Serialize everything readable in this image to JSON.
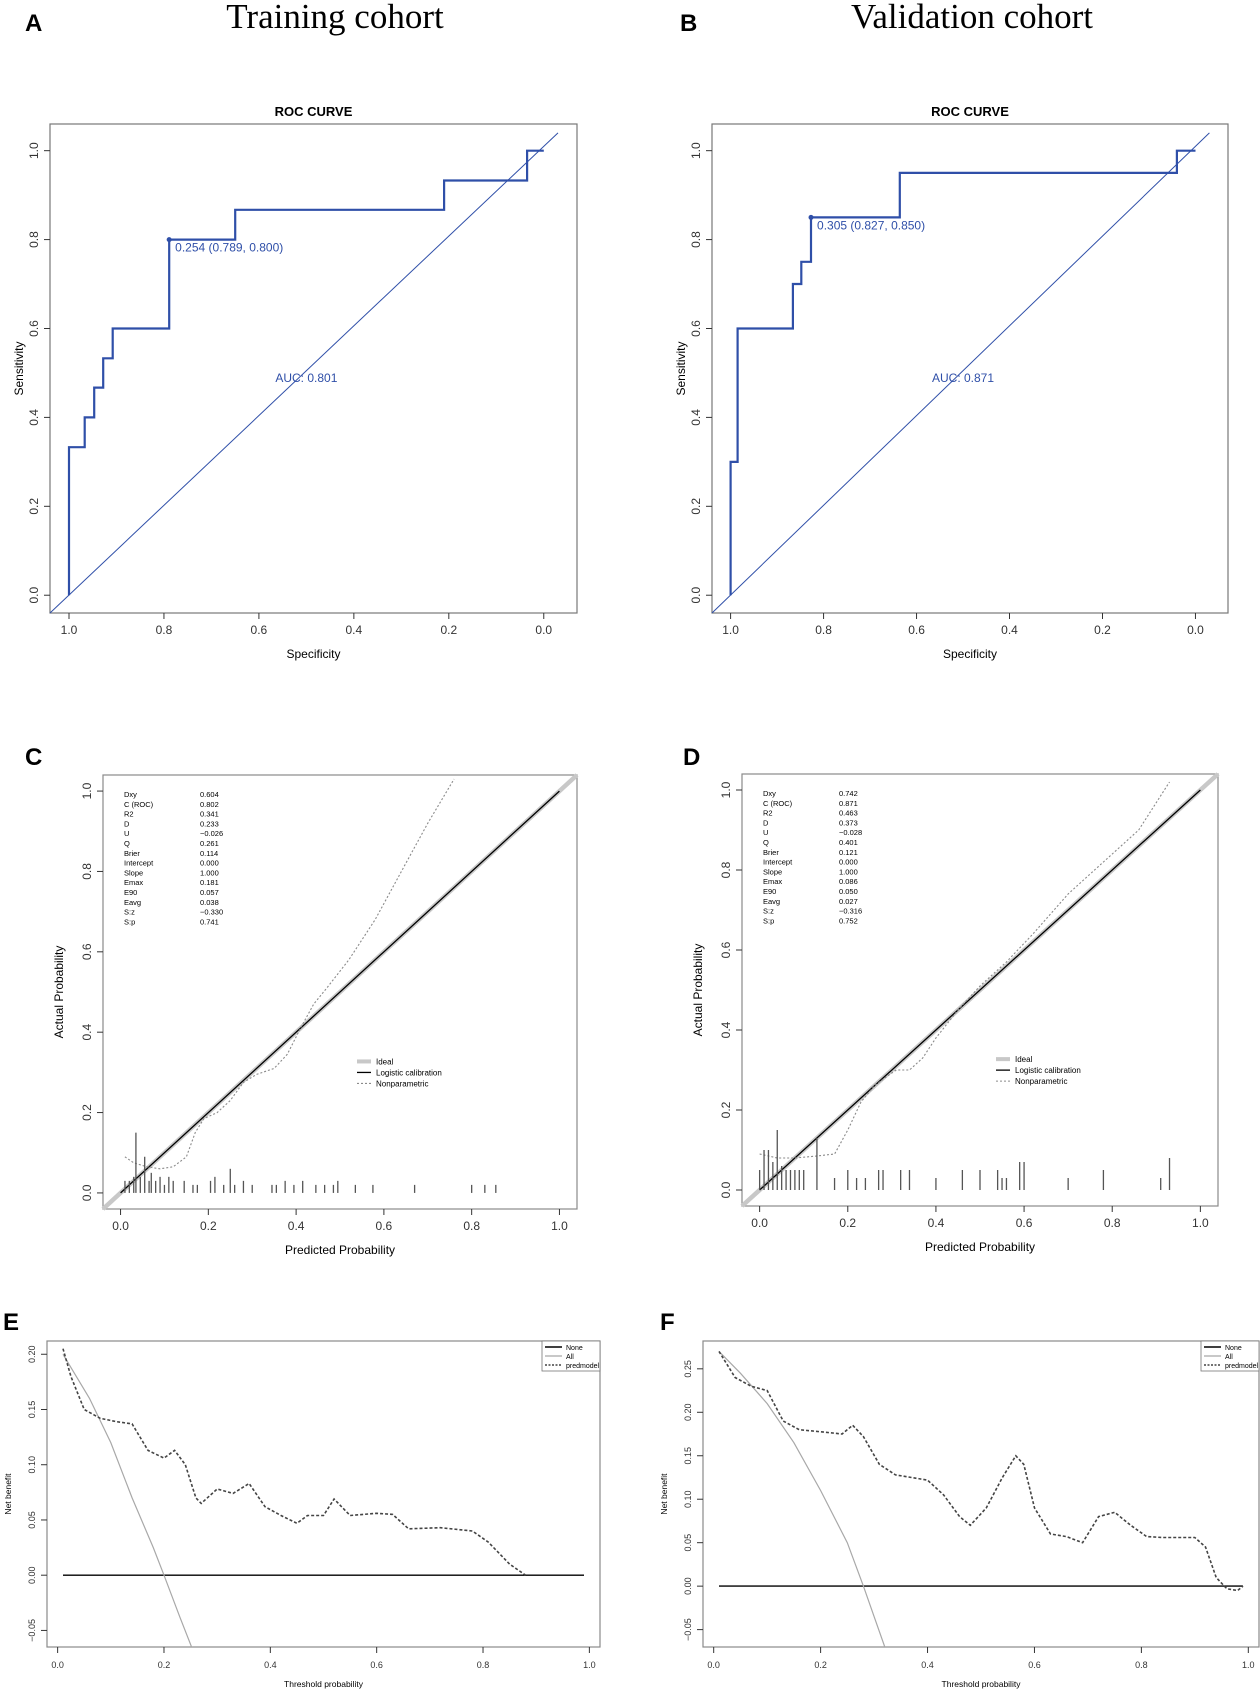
{
  "column_titles": [
    "Training cohort",
    "Validation cohort"
  ],
  "colors": {
    "roc": "#2F4FA8",
    "ink": "#000000",
    "ideal": "#c8c8c8",
    "all": "#a8a8a8",
    "nonpar": "#8a8a8a",
    "axis": "#333333",
    "box": "#777777",
    "rug": "#555555"
  },
  "chart_data": [
    {
      "id": "roc_train",
      "panel": "A",
      "type": "line",
      "title": "ROC CURVE",
      "xlabel": "Specificity",
      "ylabel": "Sensitivity",
      "xlim": [
        1.04,
        -0.07
      ],
      "ylim": [
        -0.04,
        1.06
      ],
      "xticks": [
        1.0,
        0.8,
        0.6,
        0.4,
        0.2,
        0.0
      ],
      "yticks": [
        0.0,
        0.2,
        0.4,
        0.6,
        0.8,
        1.0
      ],
      "curve": [
        [
          1.0,
          0.0
        ],
        [
          1.0,
          0.333
        ],
        [
          0.967,
          0.333
        ],
        [
          0.967,
          0.4
        ],
        [
          0.947,
          0.4
        ],
        [
          0.947,
          0.467
        ],
        [
          0.928,
          0.467
        ],
        [
          0.928,
          0.533
        ],
        [
          0.908,
          0.533
        ],
        [
          0.908,
          0.6
        ],
        [
          0.789,
          0.6
        ],
        [
          0.789,
          0.8
        ],
        [
          0.65,
          0.8
        ],
        [
          0.65,
          0.867
        ],
        [
          0.21,
          0.867
        ],
        [
          0.21,
          0.933
        ],
        [
          0.035,
          0.933
        ],
        [
          0.035,
          1.0
        ],
        [
          0.0,
          1.0
        ]
      ],
      "diagonal": [
        [
          1.04,
          -0.04
        ],
        [
          -0.03,
          1.04
        ]
      ],
      "best_point": [
        0.789,
        0.8
      ],
      "best_label": "0.254 (0.789, 0.800)",
      "auc_label": "AUC: 0.801",
      "auc_pos": [
        0.5,
        0.48
      ]
    },
    {
      "id": "roc_valid",
      "panel": "B",
      "type": "line",
      "title": "ROC CURVE",
      "xlabel": "Specificity",
      "ylabel": "Sensitivity",
      "xlim": [
        1.04,
        -0.07
      ],
      "ylim": [
        -0.04,
        1.06
      ],
      "xticks": [
        1.0,
        0.8,
        0.6,
        0.4,
        0.2,
        0.0
      ],
      "yticks": [
        0.0,
        0.2,
        0.4,
        0.6,
        0.8,
        1.0
      ],
      "curve": [
        [
          1.0,
          0.0
        ],
        [
          1.0,
          0.3
        ],
        [
          0.985,
          0.3
        ],
        [
          0.985,
          0.6
        ],
        [
          0.866,
          0.6
        ],
        [
          0.866,
          0.7
        ],
        [
          0.848,
          0.7
        ],
        [
          0.848,
          0.75
        ],
        [
          0.827,
          0.75
        ],
        [
          0.827,
          0.85
        ],
        [
          0.636,
          0.85
        ],
        [
          0.636,
          0.95
        ],
        [
          0.04,
          0.95
        ],
        [
          0.04,
          1.0
        ],
        [
          0.0,
          1.0
        ]
      ],
      "diagonal": [
        [
          1.04,
          -0.04
        ],
        [
          -0.03,
          1.04
        ]
      ],
      "best_point": [
        0.827,
        0.85
      ],
      "best_label": "0.305 (0.827, 0.850)",
      "auc_label": "AUC: 0.871",
      "auc_pos": [
        0.5,
        0.48
      ]
    },
    {
      "id": "cal_train",
      "panel": "C",
      "type": "line",
      "xlabel": "Predicted Probability",
      "ylabel": "Actual Probability",
      "xlim": [
        -0.04,
        1.04
      ],
      "ylim": [
        -0.04,
        1.04
      ],
      "xticks": [
        0.0,
        0.2,
        0.4,
        0.6,
        0.8,
        1.0
      ],
      "yticks": [
        0.0,
        0.2,
        0.4,
        0.6,
        0.8,
        1.0
      ],
      "stats_names": [
        "Dxy",
        "C (ROC)",
        "R2",
        "D",
        "U",
        "Q",
        "Brier",
        "Intercept",
        "Slope",
        "Emax",
        "E90",
        "Eavg",
        "S:z",
        "S:p"
      ],
      "stats_values": [
        "0.604",
        "0.802",
        "0.341",
        "0.233",
        "−0.026",
        "0.261",
        "0.114",
        "0.000",
        "1.000",
        "0.181",
        "0.057",
        "0.038",
        "−0.330",
        "0.741"
      ],
      "legend": [
        "Ideal",
        "Logistic calibration",
        "Nonparametric"
      ],
      "ideal": [
        [
          -0.04,
          -0.04
        ],
        [
          1.04,
          1.04
        ]
      ],
      "logistic": [
        [
          0.0,
          0.0
        ],
        [
          1.0,
          1.0
        ]
      ],
      "nonparametric": [
        [
          0.01,
          0.09
        ],
        [
          0.03,
          0.075
        ],
        [
          0.06,
          0.065
        ],
        [
          0.09,
          0.06
        ],
        [
          0.12,
          0.065
        ],
        [
          0.15,
          0.09
        ],
        [
          0.17,
          0.15
        ],
        [
          0.19,
          0.185
        ],
        [
          0.22,
          0.2
        ],
        [
          0.25,
          0.23
        ],
        [
          0.28,
          0.275
        ],
        [
          0.31,
          0.295
        ],
        [
          0.35,
          0.31
        ],
        [
          0.38,
          0.345
        ],
        [
          0.41,
          0.41
        ],
        [
          0.44,
          0.47
        ],
        [
          0.47,
          0.51
        ],
        [
          0.52,
          0.58
        ],
        [
          0.58,
          0.68
        ],
        [
          0.64,
          0.8
        ],
        [
          0.7,
          0.92
        ],
        [
          0.76,
          1.03
        ]
      ],
      "rug_ticks": [
        [
          0.01,
          0.03
        ],
        [
          0.02,
          0.03
        ],
        [
          0.03,
          0.04
        ],
        [
          0.035,
          0.15
        ],
        [
          0.045,
          0.04
        ],
        [
          0.055,
          0.09
        ],
        [
          0.065,
          0.03
        ],
        [
          0.07,
          0.05
        ],
        [
          0.08,
          0.03
        ],
        [
          0.09,
          0.04
        ],
        [
          0.1,
          0.02
        ],
        [
          0.11,
          0.04
        ],
        [
          0.12,
          0.03
        ],
        [
          0.145,
          0.03
        ],
        [
          0.165,
          0.02
        ],
        [
          0.175,
          0.02
        ],
        [
          0.205,
          0.03
        ],
        [
          0.215,
          0.04
        ],
        [
          0.235,
          0.02
        ],
        [
          0.25,
          0.06
        ],
        [
          0.26,
          0.02
        ],
        [
          0.28,
          0.03
        ],
        [
          0.3,
          0.02
        ],
        [
          0.345,
          0.02
        ],
        [
          0.355,
          0.02
        ],
        [
          0.375,
          0.03
        ],
        [
          0.395,
          0.02
        ],
        [
          0.415,
          0.03
        ],
        [
          0.445,
          0.02
        ],
        [
          0.465,
          0.02
        ],
        [
          0.485,
          0.02
        ],
        [
          0.495,
          0.03
        ],
        [
          0.535,
          0.02
        ],
        [
          0.575,
          0.02
        ],
        [
          0.67,
          0.02
        ],
        [
          0.8,
          0.02
        ],
        [
          0.83,
          0.02
        ],
        [
          0.855,
          0.02
        ]
      ]
    },
    {
      "id": "cal_valid",
      "panel": "D",
      "type": "line",
      "xlabel": "Predicted Probability",
      "ylabel": "Actual Probability",
      "xlim": [
        -0.04,
        1.04
      ],
      "ylim": [
        -0.04,
        1.04
      ],
      "xticks": [
        0.0,
        0.2,
        0.4,
        0.6,
        0.8,
        1.0
      ],
      "yticks": [
        0.0,
        0.2,
        0.4,
        0.6,
        0.8,
        1.0
      ],
      "stats_names": [
        "Dxy",
        "C (ROC)",
        "R2",
        "D",
        "U",
        "Q",
        "Brier",
        "Intercept",
        "Slope",
        "Emax",
        "E90",
        "Eavg",
        "S:z",
        "S:p"
      ],
      "stats_values": [
        "0.742",
        "0.871",
        "0.463",
        "0.373",
        "−0.028",
        "0.401",
        "0.121",
        "0.000",
        "1.000",
        "0.086",
        "0.050",
        "0.027",
        "−0.316",
        "0.752"
      ],
      "legend": [
        "Ideal",
        "Logistic calibration",
        "Nonparametric"
      ],
      "ideal": [
        [
          -0.04,
          -0.04
        ],
        [
          1.04,
          1.04
        ]
      ],
      "logistic": [
        [
          0.0,
          0.0
        ],
        [
          1.0,
          1.0
        ]
      ],
      "nonparametric": [
        [
          0.0,
          0.09
        ],
        [
          0.04,
          0.08
        ],
        [
          0.08,
          0.08
        ],
        [
          0.13,
          0.085
        ],
        [
          0.17,
          0.09
        ],
        [
          0.2,
          0.15
        ],
        [
          0.23,
          0.22
        ],
        [
          0.26,
          0.26
        ],
        [
          0.29,
          0.285
        ],
        [
          0.31,
          0.3
        ],
        [
          0.34,
          0.3
        ],
        [
          0.37,
          0.33
        ],
        [
          0.4,
          0.38
        ],
        [
          0.45,
          0.45
        ],
        [
          0.5,
          0.51
        ],
        [
          0.56,
          0.57
        ],
        [
          0.62,
          0.64
        ],
        [
          0.7,
          0.74
        ],
        [
          0.78,
          0.82
        ],
        [
          0.86,
          0.9
        ],
        [
          0.93,
          1.02
        ]
      ],
      "rug_ticks": [
        [
          0.0,
          0.05
        ],
        [
          0.01,
          0.1
        ],
        [
          0.02,
          0.1
        ],
        [
          0.03,
          0.07
        ],
        [
          0.04,
          0.15
        ],
        [
          0.05,
          0.06
        ],
        [
          0.06,
          0.05
        ],
        [
          0.07,
          0.05
        ],
        [
          0.08,
          0.05
        ],
        [
          0.09,
          0.05
        ],
        [
          0.1,
          0.05
        ],
        [
          0.13,
          0.13
        ],
        [
          0.17,
          0.03
        ],
        [
          0.2,
          0.05
        ],
        [
          0.22,
          0.03
        ],
        [
          0.24,
          0.03
        ],
        [
          0.27,
          0.05
        ],
        [
          0.28,
          0.05
        ],
        [
          0.32,
          0.05
        ],
        [
          0.34,
          0.05
        ],
        [
          0.4,
          0.03
        ],
        [
          0.46,
          0.05
        ],
        [
          0.5,
          0.05
        ],
        [
          0.54,
          0.05
        ],
        [
          0.55,
          0.03
        ],
        [
          0.56,
          0.03
        ],
        [
          0.59,
          0.07
        ],
        [
          0.6,
          0.07
        ],
        [
          0.7,
          0.03
        ],
        [
          0.78,
          0.05
        ],
        [
          0.91,
          0.03
        ],
        [
          0.93,
          0.08
        ]
      ]
    },
    {
      "id": "dca_train",
      "panel": "E",
      "type": "line",
      "xlabel": "Threshold probability",
      "ylabel": "Net benefit",
      "xlim": [
        -0.02,
        1.02
      ],
      "ylim": [
        -0.065,
        0.212
      ],
      "xticks": [
        0.0,
        0.2,
        0.4,
        0.6,
        0.8,
        1.0
      ],
      "xtick_labels": [
        "0.0",
        "0.2",
        "0.4",
        "0.6",
        "0.8",
        "1.0"
      ],
      "yticks": [
        -0.05,
        0.0,
        0.05,
        0.1,
        0.15,
        0.2
      ],
      "ytick_labels": [
        "−0.05",
        "0.00",
        "0.05",
        "0.10",
        "0.15",
        "0.20"
      ],
      "legend": [
        "None",
        "All",
        "predmodel"
      ],
      "none": [
        [
          0.01,
          0.0
        ],
        [
          0.99,
          0.0
        ]
      ],
      "all": [
        [
          0.01,
          0.2
        ],
        [
          0.06,
          0.16
        ],
        [
          0.1,
          0.12
        ],
        [
          0.14,
          0.07
        ],
        [
          0.18,
          0.025
        ],
        [
          0.2,
          0.0
        ],
        [
          0.23,
          -0.038
        ],
        [
          0.26,
          -0.075
        ]
      ],
      "predmodel": [
        [
          0.01,
          0.205
        ],
        [
          0.025,
          0.18
        ],
        [
          0.05,
          0.15
        ],
        [
          0.08,
          0.142
        ],
        [
          0.11,
          0.139
        ],
        [
          0.14,
          0.137
        ],
        [
          0.17,
          0.113
        ],
        [
          0.2,
          0.106
        ],
        [
          0.22,
          0.113
        ],
        [
          0.24,
          0.1
        ],
        [
          0.26,
          0.07
        ],
        [
          0.27,
          0.065
        ],
        [
          0.3,
          0.078
        ],
        [
          0.33,
          0.074
        ],
        [
          0.36,
          0.083
        ],
        [
          0.39,
          0.062
        ],
        [
          0.42,
          0.054
        ],
        [
          0.45,
          0.047
        ],
        [
          0.47,
          0.054
        ],
        [
          0.5,
          0.054
        ],
        [
          0.52,
          0.069
        ],
        [
          0.55,
          0.054
        ],
        [
          0.6,
          0.056
        ],
        [
          0.63,
          0.055
        ],
        [
          0.66,
          0.042
        ],
        [
          0.72,
          0.043
        ],
        [
          0.78,
          0.04
        ],
        [
          0.81,
          0.03
        ],
        [
          0.85,
          0.01
        ],
        [
          0.88,
          0.0
        ]
      ]
    },
    {
      "id": "dca_valid",
      "panel": "F",
      "type": "line",
      "xlabel": "Threshold probability",
      "ylabel": "Net benefit",
      "xlim": [
        -0.02,
        1.02
      ],
      "ylim": [
        -0.07,
        0.282
      ],
      "xticks": [
        0.0,
        0.2,
        0.4,
        0.6,
        0.8,
        1.0
      ],
      "xtick_labels": [
        "0.0",
        "0.2",
        "0.4",
        "0.6",
        "0.8",
        "1.0"
      ],
      "yticks": [
        -0.05,
        0.0,
        0.05,
        0.1,
        0.15,
        0.2,
        0.25
      ],
      "ytick_labels": [
        "−0.05",
        "0.00",
        "0.05",
        "0.10",
        "0.15",
        "0.20",
        "0.25"
      ],
      "legend": [
        "None",
        "All",
        "predmodel"
      ],
      "none": [
        [
          0.01,
          0.0
        ],
        [
          0.99,
          0.0
        ]
      ],
      "all": [
        [
          0.01,
          0.27
        ],
        [
          0.05,
          0.245
        ],
        [
          0.1,
          0.21
        ],
        [
          0.15,
          0.165
        ],
        [
          0.2,
          0.11
        ],
        [
          0.25,
          0.05
        ],
        [
          0.28,
          0.0
        ],
        [
          0.3,
          -0.035
        ],
        [
          0.32,
          -0.07
        ]
      ],
      "predmodel": [
        [
          0.01,
          0.27
        ],
        [
          0.04,
          0.24
        ],
        [
          0.07,
          0.23
        ],
        [
          0.1,
          0.225
        ],
        [
          0.13,
          0.19
        ],
        [
          0.16,
          0.18
        ],
        [
          0.21,
          0.177
        ],
        [
          0.24,
          0.175
        ],
        [
          0.26,
          0.185
        ],
        [
          0.28,
          0.172
        ],
        [
          0.31,
          0.14
        ],
        [
          0.34,
          0.128
        ],
        [
          0.37,
          0.125
        ],
        [
          0.4,
          0.122
        ],
        [
          0.43,
          0.105
        ],
        [
          0.46,
          0.08
        ],
        [
          0.48,
          0.07
        ],
        [
          0.51,
          0.09
        ],
        [
          0.54,
          0.125
        ],
        [
          0.565,
          0.15
        ],
        [
          0.58,
          0.14
        ],
        [
          0.6,
          0.09
        ],
        [
          0.63,
          0.06
        ],
        [
          0.66,
          0.057
        ],
        [
          0.69,
          0.05
        ],
        [
          0.72,
          0.08
        ],
        [
          0.75,
          0.085
        ],
        [
          0.78,
          0.07
        ],
        [
          0.81,
          0.057
        ],
        [
          0.84,
          0.056
        ],
        [
          0.9,
          0.056
        ],
        [
          0.92,
          0.045
        ],
        [
          0.94,
          0.01
        ],
        [
          0.96,
          -0.003
        ],
        [
          0.98,
          -0.005
        ],
        [
          0.99,
          0.0
        ]
      ]
    }
  ]
}
